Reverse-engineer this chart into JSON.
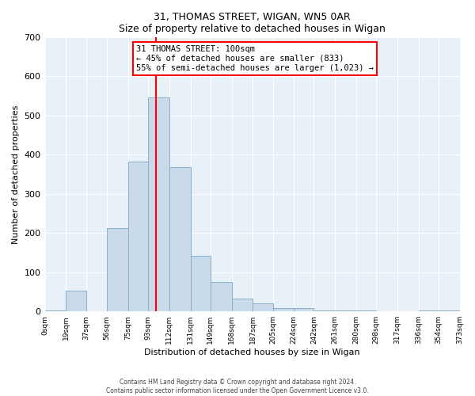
{
  "title": "31, THOMAS STREET, WIGAN, WN5 0AR",
  "subtitle": "Size of property relative to detached houses in Wigan",
  "xlabel": "Distribution of detached houses by size in Wigan",
  "ylabel": "Number of detached properties",
  "bar_left_edges": [
    0,
    19,
    37,
    56,
    75,
    93,
    112,
    131,
    149,
    168,
    187,
    205,
    224,
    242,
    261,
    280,
    298,
    317,
    336,
    354
  ],
  "bar_widths": [
    19,
    18,
    19,
    19,
    18,
    19,
    19,
    18,
    19,
    19,
    18,
    19,
    18,
    19,
    19,
    18,
    19,
    19,
    18,
    19
  ],
  "bar_heights": [
    3,
    53,
    0,
    212,
    382,
    547,
    369,
    141,
    76,
    33,
    20,
    8,
    8,
    3,
    3,
    3,
    0,
    0,
    3,
    3
  ],
  "tick_positions": [
    0,
    19,
    37,
    56,
    75,
    93,
    112,
    131,
    149,
    168,
    187,
    205,
    224,
    242,
    261,
    280,
    298,
    317,
    336,
    354,
    373
  ],
  "tick_labels": [
    "0sqm",
    "19sqm",
    "37sqm",
    "56sqm",
    "75sqm",
    "93sqm",
    "112sqm",
    "131sqm",
    "149sqm",
    "168sqm",
    "187sqm",
    "205sqm",
    "224sqm",
    "242sqm",
    "261sqm",
    "280sqm",
    "298sqm",
    "317sqm",
    "336sqm",
    "354sqm",
    "373sqm"
  ],
  "bar_color": "#c9daea",
  "bar_edge_color": "#8ab0cc",
  "vline_x": 100,
  "vline_color": "red",
  "annotation_title": "31 THOMAS STREET: 100sqm",
  "annotation_line1": "← 45% of detached houses are smaller (833)",
  "annotation_line2": "55% of semi-detached houses are larger (1,023) →",
  "ylim": [
    0,
    700
  ],
  "xlim": [
    0,
    373
  ],
  "footer1": "Contains HM Land Registry data © Crown copyright and database right 2024.",
  "footer2": "Contains public sector information licensed under the Open Government Licence v3.0.",
  "fig_bg_color": "#ffffff",
  "plot_bg_color": "#e8f0f8"
}
